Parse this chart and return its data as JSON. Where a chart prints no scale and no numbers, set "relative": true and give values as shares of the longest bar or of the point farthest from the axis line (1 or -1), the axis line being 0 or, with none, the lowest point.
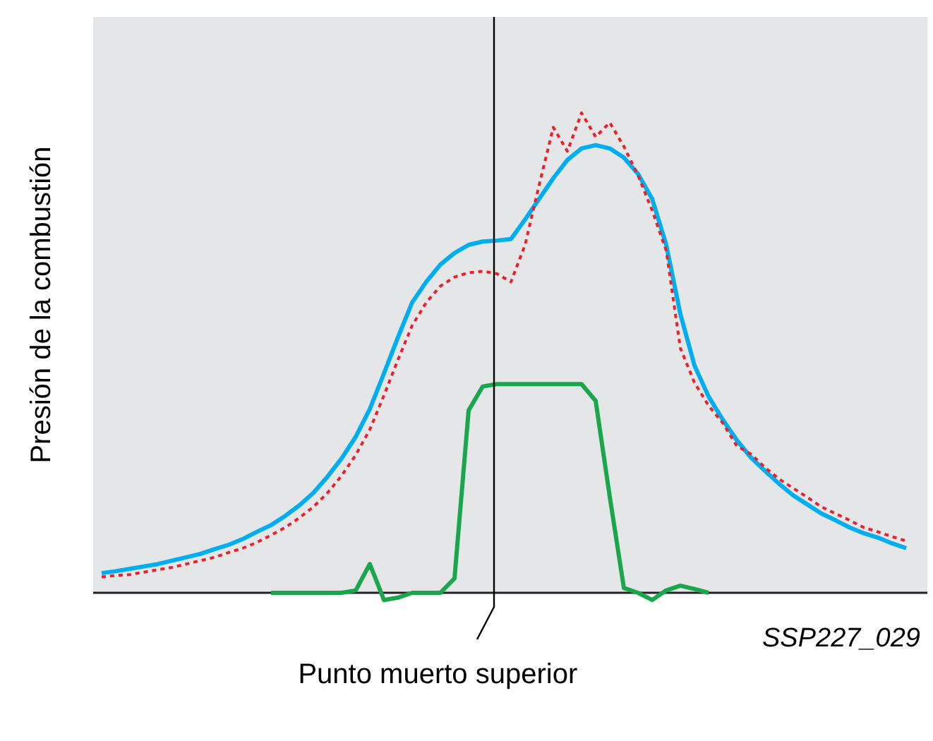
{
  "chart_data": {
    "type": "line",
    "relative": true,
    "ylabel": "Presión de la combustión",
    "legend": false,
    "marker": "none",
    "categories": [
      null,
      null,
      null,
      null,
      null,
      null,
      null,
      null,
      null,
      null,
      null,
      null,
      null,
      null,
      null,
      null,
      null,
      null,
      null,
      null,
      null,
      null,
      null,
      null,
      null,
      null,
      null,
      null,
      null,
      null,
      null,
      null,
      null,
      null,
      null,
      null,
      null,
      null,
      null,
      null,
      null,
      null,
      null,
      null,
      null,
      null,
      null,
      null,
      null,
      null,
      null,
      null,
      null,
      null,
      null,
      null,
      null,
      null
    ],
    "series": [
      {
        "color": "#e8212b",
        "line_style": "dotted",
        "values": [
          0.033,
          0.036,
          0.038,
          0.043,
          0.048,
          0.053,
          0.06,
          0.067,
          0.074,
          0.084,
          0.093,
          0.105,
          0.12,
          0.136,
          0.156,
          0.179,
          0.208,
          0.244,
          0.287,
          0.34,
          0.411,
          0.486,
          0.557,
          0.605,
          0.639,
          0.658,
          0.667,
          0.67,
          0.665,
          0.648,
          0.725,
          0.85,
          0.97,
          0.92,
          1.0,
          0.95,
          0.98,
          0.93,
          0.87,
          0.797,
          0.713,
          0.51,
          0.438,
          0.39,
          0.354,
          0.306,
          0.289,
          0.261,
          0.237,
          0.218,
          0.199,
          0.179,
          0.165,
          0.151,
          0.136,
          0.127,
          0.117,
          0.108
        ]
      },
      {
        "color": "#00aeef",
        "line_style": "solid",
        "values": [
          0.041,
          0.045,
          0.05,
          0.055,
          0.06,
          0.067,
          0.074,
          0.081,
          0.091,
          0.1,
          0.112,
          0.127,
          0.141,
          0.16,
          0.182,
          0.208,
          0.242,
          0.28,
          0.325,
          0.383,
          0.457,
          0.533,
          0.605,
          0.648,
          0.684,
          0.708,
          0.725,
          0.732,
          0.734,
          0.737,
          0.778,
          0.821,
          0.864,
          0.902,
          0.926,
          0.933,
          0.926,
          0.907,
          0.873,
          0.821,
          0.725,
          0.581,
          0.474,
          0.409,
          0.361,
          0.318,
          0.282,
          0.254,
          0.227,
          0.203,
          0.184,
          0.165,
          0.151,
          0.136,
          0.124,
          0.115,
          0.103,
          0.093
        ]
      },
      {
        "color": "#1aa64a",
        "line_style": "solid",
        "values": [
          null,
          null,
          null,
          null,
          null,
          null,
          null,
          null,
          null,
          null,
          null,
          null,
          0,
          0,
          0,
          0,
          0,
          0,
          0.005,
          0.06,
          -0.015,
          -0.01,
          0,
          0,
          0,
          0.03,
          0.38,
          0.43,
          0.435,
          0.435,
          0.435,
          0.435,
          0.435,
          0.435,
          0.435,
          0.4,
          0.2,
          0.01,
          0,
          -0.015,
          0.005,
          0.015,
          0.008,
          0,
          null,
          null,
          null,
          null,
          null,
          null,
          null,
          null,
          null,
          null,
          null,
          null,
          null,
          null
        ]
      }
    ],
    "annotations": [
      "Punto muerto superior",
      "SSP227_029"
    ]
  }
}
